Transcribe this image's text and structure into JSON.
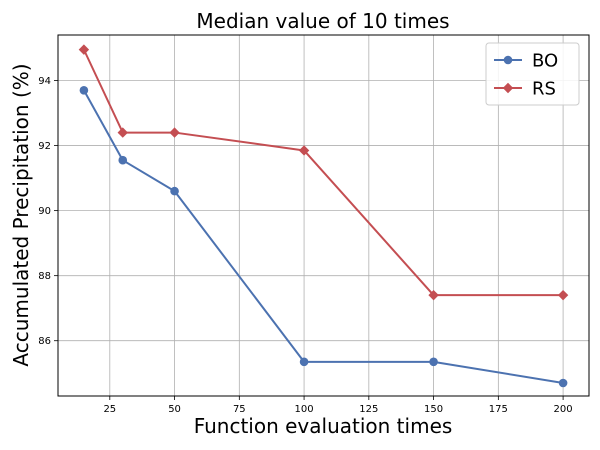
{
  "chart_data": {
    "type": "line",
    "title": "Median value of 10 times",
    "xlabel": "Function evaluation times",
    "ylabel": "Accumulated Precipitation (%)",
    "xlim": [
      5,
      210
    ],
    "ylim": [
      84.3,
      95.4
    ],
    "xticks": [
      25,
      50,
      75,
      100,
      125,
      150,
      175,
      200
    ],
    "yticks": [
      86,
      88,
      90,
      92,
      94
    ],
    "grid": true,
    "legend_position": "top-right",
    "series": [
      {
        "name": "BO",
        "color": "#4c72b0",
        "marker": "circle",
        "x": [
          15,
          30,
          50,
          100,
          150,
          200
        ],
        "y": [
          93.7,
          91.55,
          90.6,
          85.35,
          85.35,
          84.7
        ]
      },
      {
        "name": "RS",
        "color": "#c44e52",
        "marker": "diamond",
        "x": [
          15,
          30,
          50,
          100,
          150,
          200
        ],
        "y": [
          94.95,
          92.4,
          92.4,
          91.85,
          87.4,
          87.4
        ]
      }
    ]
  }
}
